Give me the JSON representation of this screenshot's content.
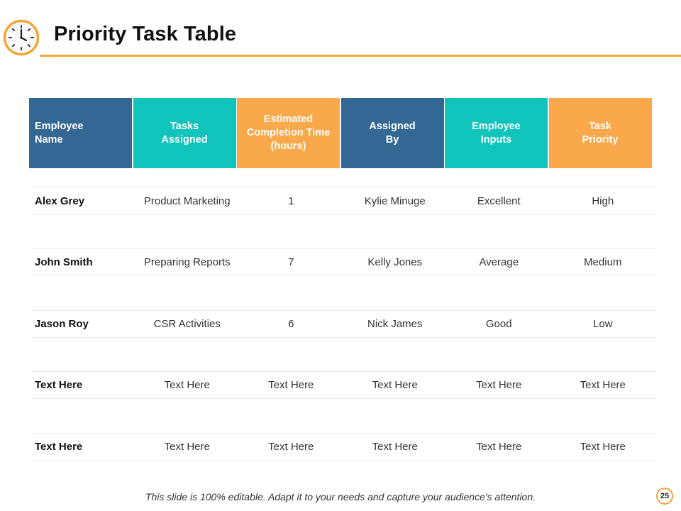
{
  "title": "Priority Task Table",
  "colors": {
    "blue": "#336794",
    "teal": "#10c3bb",
    "orange": "#f9a84b",
    "accent": "#f2a53b"
  },
  "table": {
    "headers": [
      {
        "label": "Employee\nName",
        "color": "blue"
      },
      {
        "label": "Tasks\nAssigned",
        "color": "teal"
      },
      {
        "label": "Estimated\nCompletion Time\n(hours)",
        "color": "orange"
      },
      {
        "label": "Assigned\nBy",
        "color": "blue"
      },
      {
        "label": "Employee\nInputs",
        "color": "teal"
      },
      {
        "label": "Task\nPriority",
        "color": "orange"
      }
    ],
    "rows": [
      [
        "Alex Grey",
        "Product Marketing",
        "1",
        "Kylie Minuge",
        "Excellent",
        "High"
      ],
      [
        "John Smith",
        "Preparing Reports",
        "7",
        "Kelly Jones",
        "Average",
        "Medium"
      ],
      [
        "Jason Roy",
        "CSR Activities",
        "6",
        "Nick James",
        "Good",
        "Low"
      ],
      [
        "Text Here",
        "Text Here",
        "Text Here",
        "Text Here",
        "Text Here",
        "Text Here"
      ],
      [
        "Text Here",
        "Text Here",
        "Text Here",
        "Text Here",
        "Text Here",
        "Text Here"
      ]
    ]
  },
  "footer": "This slide is 100% editable.  Adapt it to your needs and capture your audience's attention.",
  "page_number": "25",
  "icon": "clock-icon"
}
